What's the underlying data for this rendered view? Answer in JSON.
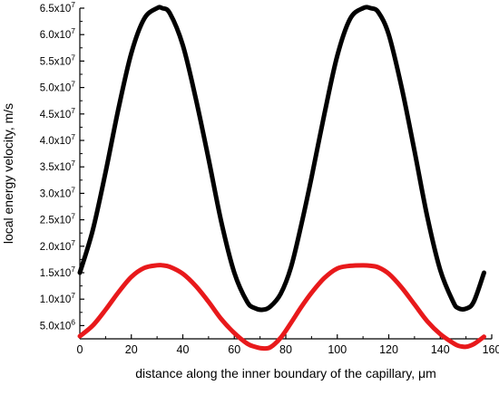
{
  "chart_data": {
    "type": "line",
    "xlabel": "distance along the inner boundary of the capillary, μm",
    "ylabel": "local energy velocity, m/s",
    "xlim": [
      0,
      160
    ],
    "ylim": [
      2500000,
      65000000
    ],
    "x_ticks": [
      0,
      20,
      40,
      60,
      80,
      100,
      120,
      140,
      160
    ],
    "y_ticks": [
      5000000,
      10000000,
      15000000,
      20000000,
      25000000,
      30000000,
      35000000,
      40000000,
      45000000,
      50000000,
      55000000,
      60000000,
      65000000
    ],
    "y_tick_labels": [
      "5.0x10",
      "1.0x10",
      "1.5x10",
      "2.0x10",
      "2.5x10",
      "3.0x10",
      "3.5x10",
      "4.0x10",
      "4.5x10",
      "5.0x10",
      "5.5x10",
      "6.0x10",
      "6.5x10"
    ],
    "y_tick_exponents": [
      "6",
      "7",
      "7",
      "7",
      "7",
      "7",
      "7",
      "7",
      "7",
      "7",
      "7",
      "7",
      "7"
    ],
    "grid": false,
    "series": [
      {
        "color": "#000000",
        "x": [
          0,
          5,
          10,
          15,
          20,
          25,
          30,
          32,
          35,
          40,
          45,
          50,
          55,
          60,
          65,
          68,
          71,
          74,
          78,
          82,
          86,
          90,
          95,
          100,
          105,
          110,
          113,
          116,
          120,
          125,
          130,
          135,
          140,
          145,
          147,
          150,
          153,
          157
        ],
        "values": [
          15000000,
          23000000,
          34000000,
          46000000,
          56500000,
          63000000,
          65000000,
          65000000,
          64000000,
          58000000,
          48000000,
          36500000,
          24500000,
          15000000,
          9500000,
          8300000,
          8000000,
          8600000,
          11000000,
          16000000,
          24000000,
          33000000,
          45000000,
          56000000,
          63000000,
          65000000,
          65000000,
          64200000,
          60000000,
          50000000,
          38000000,
          25500000,
          15500000,
          9500000,
          8300000,
          8200000,
          9500000,
          15000000
        ]
      },
      {
        "color": "#e8191b",
        "x": [
          0,
          5,
          10,
          15,
          20,
          25,
          30,
          32,
          35,
          40,
          45,
          50,
          55,
          60,
          65,
          68,
          71,
          74,
          78,
          82,
          86,
          90,
          95,
          100,
          105,
          110,
          113,
          116,
          120,
          125,
          130,
          135,
          140,
          145,
          147,
          150,
          153,
          157
        ],
        "values": [
          3000000,
          5000000,
          8000000,
          11300000,
          14200000,
          15900000,
          16400000,
          16400000,
          16100000,
          14800000,
          12500000,
          9500000,
          6200000,
          3600000,
          1600000,
          1000000,
          700000,
          900000,
          2700000,
          5500000,
          8500000,
          11200000,
          14000000,
          15800000,
          16300000,
          16400000,
          16300000,
          16000000,
          14800000,
          12200000,
          9000000,
          5800000,
          3400000,
          1700000,
          1200000,
          1000000,
          1500000,
          2900000
        ]
      }
    ]
  }
}
